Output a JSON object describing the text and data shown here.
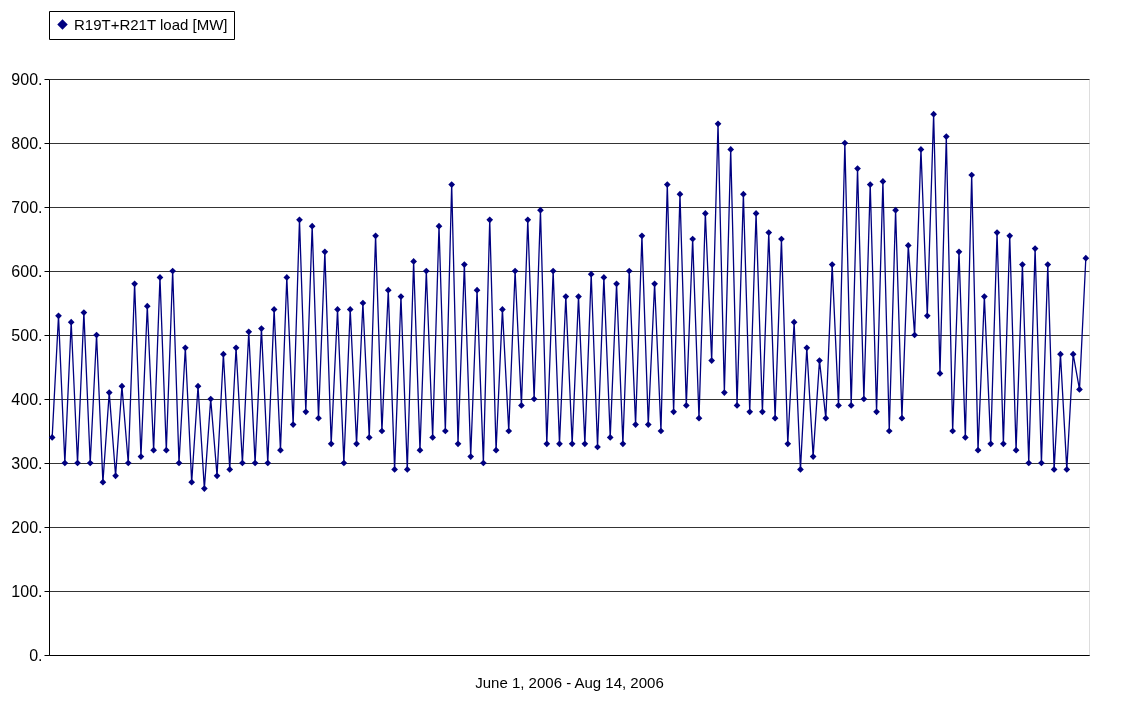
{
  "chart_data": {
    "type": "line",
    "xlabel": "June 1, 2006 - Aug 14, 2006",
    "categories": [
      null,
      null,
      null,
      null,
      null,
      null,
      null,
      null,
      null,
      null,
      null,
      null,
      null,
      null,
      null,
      null,
      null,
      null,
      null,
      null,
      null,
      null,
      null,
      null,
      null,
      null,
      null,
      null,
      null,
      null,
      null,
      null,
      null,
      null,
      null,
      null,
      null,
      null,
      null,
      null,
      null,
      null,
      null,
      null,
      null,
      null,
      null,
      null,
      null,
      null,
      null,
      null,
      null,
      null,
      null,
      null,
      null,
      null,
      null,
      null,
      null,
      null,
      null,
      null,
      null,
      null,
      null,
      null,
      null,
      null,
      null,
      null,
      null,
      null,
      null,
      null,
      null,
      null,
      null,
      null,
      null,
      null,
      null,
      null,
      null,
      null,
      null,
      null,
      null,
      null,
      null,
      null,
      null,
      null,
      null,
      null,
      null,
      null,
      null,
      null,
      null,
      null,
      null,
      null,
      null,
      null,
      null,
      null,
      null,
      null,
      null,
      null,
      null,
      null,
      null,
      null,
      null,
      null,
      null,
      null,
      null,
      null,
      null,
      null,
      null,
      null,
      null,
      null,
      null,
      null,
      null,
      null,
      null,
      null,
      null,
      null,
      null,
      null,
      null,
      null,
      null,
      null,
      null,
      null,
      null,
      null,
      null,
      null,
      null,
      null,
      null,
      null,
      null,
      null,
      null,
      null,
      null,
      null,
      null,
      null,
      null,
      null,
      null,
      null
    ],
    "series": [
      {
        "name": "R19T+R21T load [MW]",
        "color": "#000080",
        "values": [
          340,
          530,
          300,
          520,
          300,
          535,
          300,
          500,
          270,
          410,
          280,
          420,
          300,
          580,
          310,
          545,
          320,
          590,
          320,
          600,
          300,
          480,
          270,
          420,
          260,
          400,
          280,
          470,
          290,
          480,
          300,
          505,
          300,
          510,
          300,
          540,
          320,
          590,
          360,
          680,
          380,
          670,
          370,
          630,
          330,
          540,
          300,
          540,
          330,
          550,
          340,
          655,
          350,
          570,
          290,
          560,
          290,
          615,
          320,
          600,
          340,
          670,
          350,
          735,
          330,
          610,
          310,
          570,
          300,
          680,
          320,
          540,
          350,
          600,
          390,
          680,
          400,
          695,
          330,
          600,
          330,
          560,
          330,
          560,
          330,
          595,
          325,
          590,
          340,
          580,
          330,
          600,
          360,
          655,
          360,
          580,
          350,
          735,
          380,
          720,
          390,
          650,
          370,
          690,
          460,
          830,
          410,
          790,
          390,
          720,
          380,
          690,
          380,
          660,
          370,
          650,
          330,
          520,
          290,
          480,
          310,
          460,
          370,
          610,
          390,
          800,
          390,
          760,
          400,
          735,
          380,
          740,
          350,
          695,
          370,
          640,
          500,
          790,
          530,
          845,
          440,
          810,
          350,
          630,
          340,
          750,
          320,
          560,
          330,
          660,
          330,
          655,
          320,
          610,
          300,
          635,
          300,
          610,
          290,
          470,
          290,
          470,
          415,
          620
        ]
      }
    ],
    "ylim": [
      0,
      900
    ],
    "yticks": [
      {
        "value": 0,
        "label": "0."
      },
      {
        "value": 100,
        "label": "100."
      },
      {
        "value": 200,
        "label": "200."
      },
      {
        "value": 300,
        "label": "300."
      },
      {
        "value": 400,
        "label": "400."
      },
      {
        "value": 500,
        "label": "500."
      },
      {
        "value": 600,
        "label": "600."
      },
      {
        "value": 700,
        "label": "700."
      },
      {
        "value": 800,
        "label": "800."
      },
      {
        "value": 900,
        "label": "900."
      }
    ],
    "grid": "y",
    "legend": "top",
    "marker": "diamond",
    "line_style": "solid"
  }
}
